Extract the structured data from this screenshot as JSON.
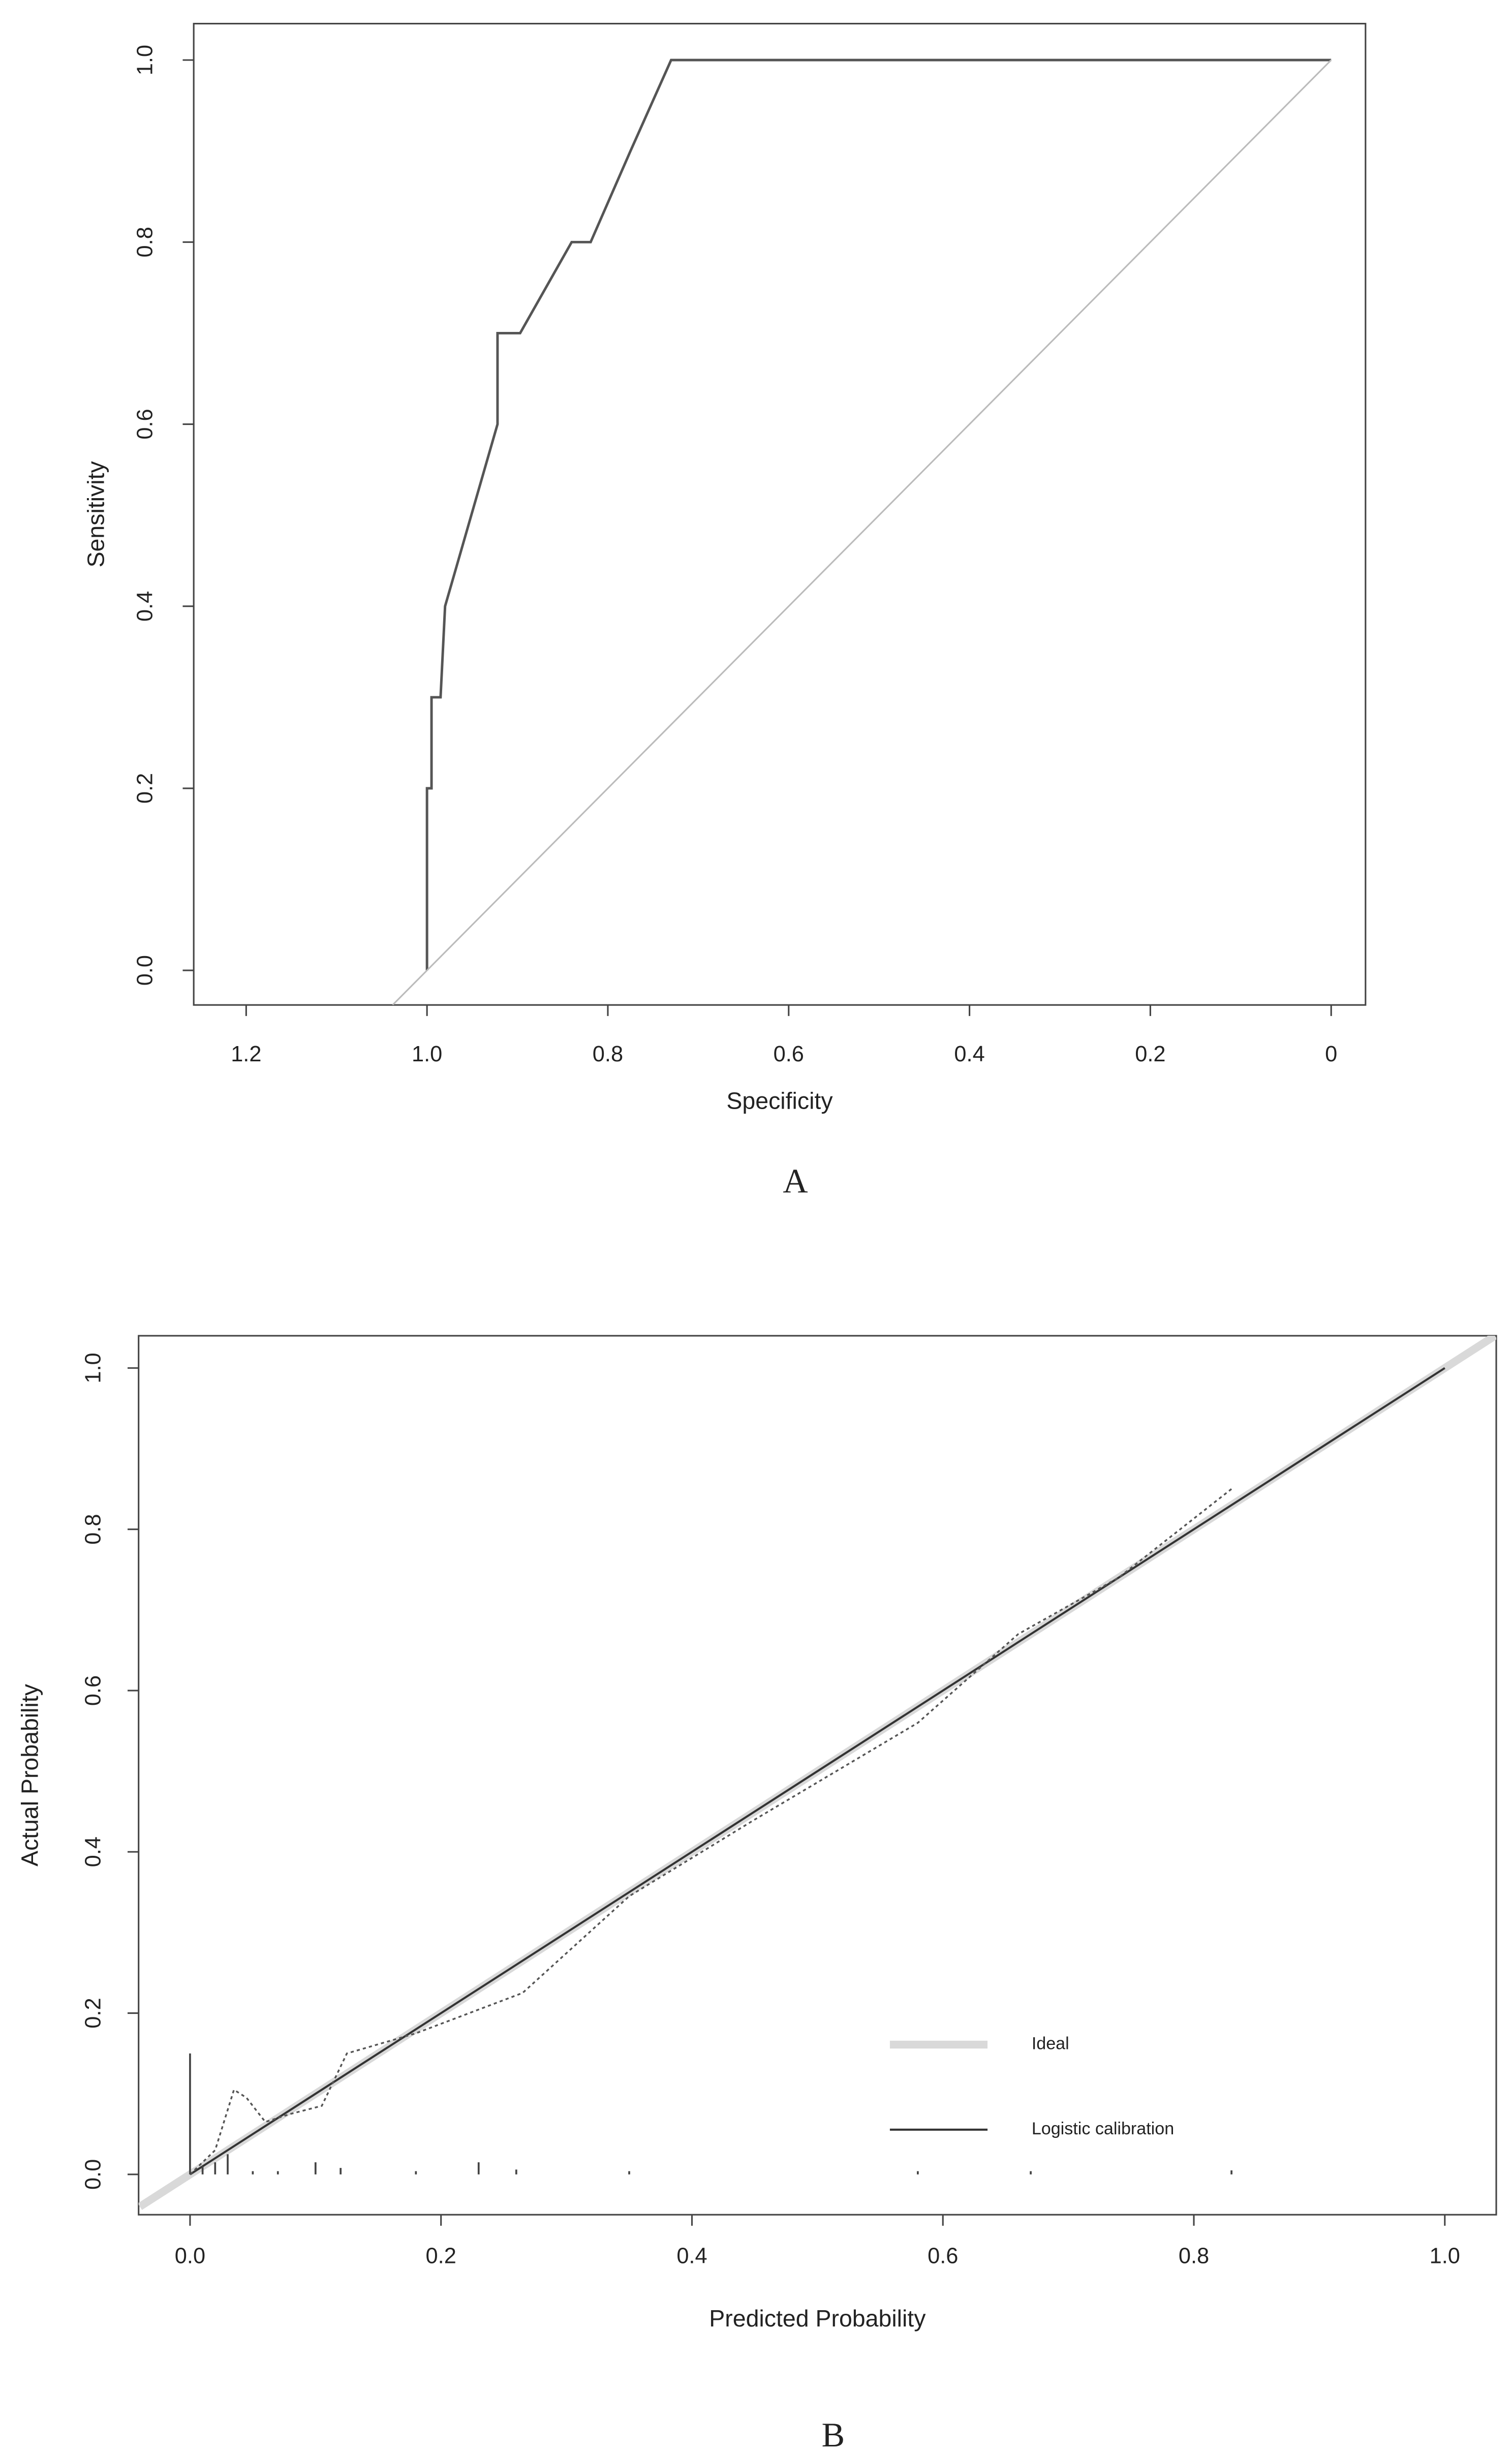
{
  "chart_data": [
    {
      "type": "line",
      "caption": "A",
      "x_label": "Specificity",
      "y_label": "Sensitivity",
      "xlim": [
        1.258,
        -0.038
      ],
      "ylim": [
        -0.038,
        1.04
      ],
      "xticks": [
        1.2,
        {
          "value": 1,
          "label": "1.0"
        },
        0.8,
        0.6,
        0.4,
        0.2,
        0
      ],
      "yticks": [
        {
          "value": 0,
          "label": "0.0"
        },
        0.2,
        0.4,
        0.6,
        0.8,
        {
          "value": 1,
          "label": "1.0"
        }
      ],
      "series": [
        {
          "color": "#555555",
          "width": 1.6,
          "x": [
            1.0,
            1.0,
            0.995,
            0.995,
            0.985,
            0.98,
            0.922,
            0.922,
            0.897,
            0.84,
            0.819,
            0.775,
            0.73,
            0.0
          ],
          "values": [
            0.0,
            0.2,
            0.2,
            0.3,
            0.3,
            0.4,
            0.6,
            0.7,
            0.7,
            0.8,
            0.8,
            0.9,
            1.0,
            1.0
          ]
        },
        {
          "color": "#bbbbbb",
          "width": 1,
          "x": [
            1.038,
            0
          ],
          "values": [
            -0.038,
            1
          ]
        }
      ]
    },
    {
      "type": "line",
      "caption": "B",
      "x_label": "Predicted Probability",
      "y_label": "Actual Probability",
      "xlim": [
        -0.041,
        1.041
      ],
      "ylim": [
        -0.05,
        1.04
      ],
      "xticks": [
        {
          "value": 0,
          "label": "0.0"
        },
        0.2,
        0.4,
        0.6,
        0.8,
        {
          "value": 1,
          "label": "1.0"
        }
      ],
      "yticks": [
        {
          "value": 0,
          "label": "0.0"
        },
        0.2,
        0.4,
        0.6,
        0.8,
        {
          "value": 1,
          "label": "1.0"
        }
      ],
      "legend": "bottom-right",
      "series": [
        {
          "name": "Ideal",
          "color": "#d9d9d9",
          "width": 5,
          "x": [
            -0.04,
            1.04
          ],
          "values": [
            -0.04,
            1.04
          ]
        },
        {
          "name": "Logistic calibration",
          "color": "#333333",
          "width": 1.3,
          "x": [
            0,
            1
          ],
          "values": [
            0,
            1
          ]
        },
        {
          "color": "#555555",
          "width": 1.1,
          "dash": "2,2",
          "x": [
            0,
            0.02,
            0.035,
            0.045,
            0.06,
            0.08,
            0.105,
            0.125,
            0.18,
            0.265,
            0.35,
            0.45,
            0.58,
            0.66,
            0.74,
            0.83
          ],
          "values": [
            0,
            0.03,
            0.105,
            0.095,
            0.065,
            0.075,
            0.085,
            0.15,
            0.175,
            0.225,
            0.345,
            0.44,
            0.56,
            0.67,
            0.74,
            0.85
          ]
        }
      ],
      "rug": {
        "x": [
          0,
          0.01,
          0.02,
          0.03,
          0.05,
          0.07,
          0.1,
          0.12,
          0.18,
          0.23,
          0.26,
          0.35,
          0.58,
          0.67,
          0.83
        ],
        "values": [
          0.15,
          0.01,
          0.015,
          0.025,
          0.004,
          0.004,
          0.015,
          0.008,
          0.004,
          0.015,
          0.006,
          0.004,
          0.004,
          0.004,
          0.005
        ]
      }
    }
  ]
}
